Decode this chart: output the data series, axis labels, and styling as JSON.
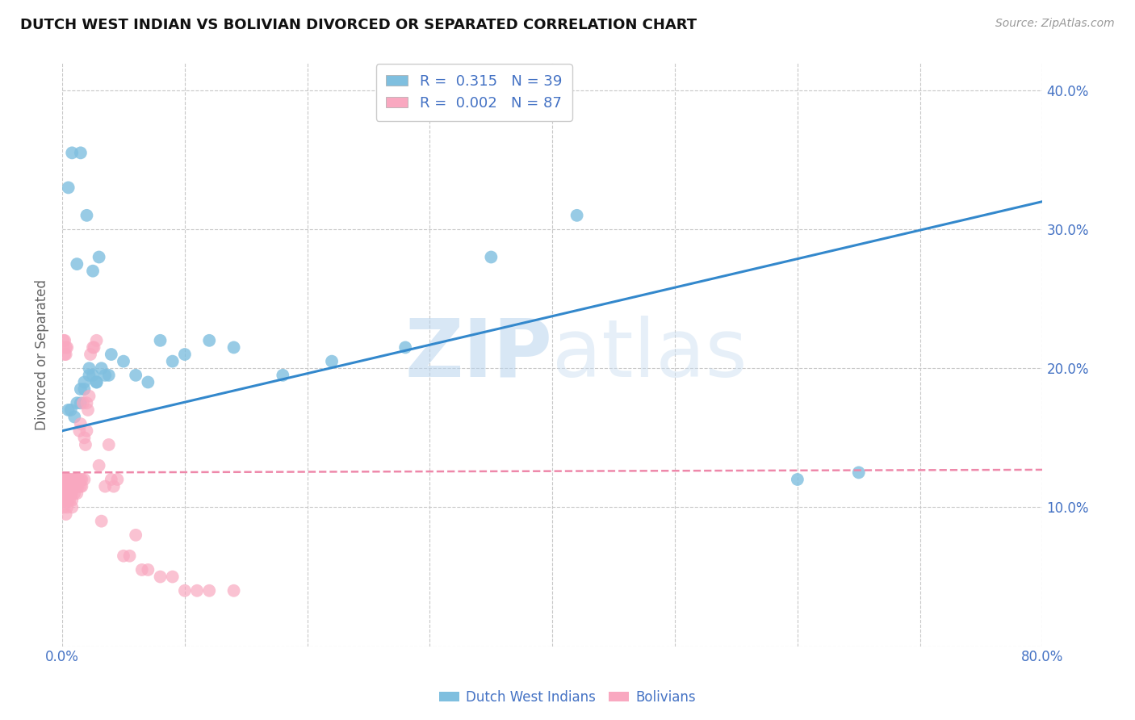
{
  "title": "DUTCH WEST INDIAN VS BOLIVIAN DIVORCED OR SEPARATED CORRELATION CHART",
  "source": "Source: ZipAtlas.com",
  "xlabel": "",
  "ylabel": "Divorced or Separated",
  "xlim": [
    0.0,
    0.8
  ],
  "ylim": [
    0.0,
    0.42
  ],
  "xticks": [
    0.0,
    0.1,
    0.2,
    0.3,
    0.4,
    0.5,
    0.6,
    0.7,
    0.8
  ],
  "yticks": [
    0.0,
    0.1,
    0.2,
    0.3,
    0.4
  ],
  "grid_color": "#c8c8c8",
  "background_color": "#ffffff",
  "blue_color": "#7fbfdf",
  "pink_color": "#f9a8c0",
  "blue_line_color": "#3388cc",
  "pink_line_color": "#ee88aa",
  "legend_R_blue": "0.315",
  "legend_N_blue": "39",
  "legend_R_pink": "0.002",
  "legend_N_pink": "87",
  "watermark_zip": "ZIP",
  "watermark_atlas": "atlas",
  "blue_scatter_x": [
    0.005,
    0.007,
    0.012,
    0.015,
    0.018,
    0.022,
    0.025,
    0.028,
    0.032,
    0.038,
    0.01,
    0.015,
    0.018,
    0.022,
    0.028,
    0.035,
    0.04,
    0.05,
    0.06,
    0.07,
    0.08,
    0.09,
    0.1,
    0.12,
    0.14,
    0.18,
    0.22,
    0.28,
    0.35,
    0.42,
    0.005,
    0.008,
    0.012,
    0.015,
    0.02,
    0.025,
    0.03,
    0.6,
    0.65
  ],
  "blue_scatter_y": [
    0.17,
    0.17,
    0.175,
    0.185,
    0.19,
    0.2,
    0.195,
    0.19,
    0.2,
    0.195,
    0.165,
    0.175,
    0.185,
    0.195,
    0.19,
    0.195,
    0.21,
    0.205,
    0.195,
    0.19,
    0.22,
    0.205,
    0.21,
    0.22,
    0.215,
    0.195,
    0.205,
    0.215,
    0.28,
    0.31,
    0.33,
    0.355,
    0.275,
    0.355,
    0.31,
    0.27,
    0.28,
    0.12,
    0.125
  ],
  "pink_scatter_x": [
    0.001,
    0.001,
    0.001,
    0.001,
    0.001,
    0.002,
    0.002,
    0.002,
    0.002,
    0.002,
    0.003,
    0.003,
    0.003,
    0.003,
    0.003,
    0.004,
    0.004,
    0.004,
    0.004,
    0.005,
    0.005,
    0.005,
    0.005,
    0.006,
    0.006,
    0.006,
    0.006,
    0.007,
    0.007,
    0.007,
    0.008,
    0.008,
    0.008,
    0.009,
    0.009,
    0.01,
    0.01,
    0.01,
    0.011,
    0.011,
    0.012,
    0.012,
    0.013,
    0.013,
    0.014,
    0.015,
    0.015,
    0.015,
    0.016,
    0.016,
    0.017,
    0.018,
    0.018,
    0.019,
    0.02,
    0.02,
    0.021,
    0.022,
    0.023,
    0.025,
    0.026,
    0.028,
    0.03,
    0.032,
    0.035,
    0.038,
    0.04,
    0.042,
    0.045,
    0.05,
    0.055,
    0.06,
    0.065,
    0.07,
    0.08,
    0.09,
    0.1,
    0.11,
    0.12,
    0.14,
    0.001,
    0.001,
    0.002,
    0.002,
    0.003,
    0.003,
    0.004
  ],
  "pink_scatter_y": [
    0.115,
    0.12,
    0.115,
    0.105,
    0.1,
    0.115,
    0.12,
    0.115,
    0.11,
    0.105,
    0.12,
    0.115,
    0.11,
    0.105,
    0.095,
    0.115,
    0.11,
    0.105,
    0.1,
    0.12,
    0.115,
    0.11,
    0.105,
    0.115,
    0.12,
    0.11,
    0.105,
    0.115,
    0.12,
    0.11,
    0.11,
    0.105,
    0.1,
    0.115,
    0.12,
    0.115,
    0.12,
    0.11,
    0.115,
    0.12,
    0.115,
    0.11,
    0.115,
    0.12,
    0.155,
    0.115,
    0.12,
    0.16,
    0.115,
    0.12,
    0.175,
    0.15,
    0.12,
    0.145,
    0.155,
    0.175,
    0.17,
    0.18,
    0.21,
    0.215,
    0.215,
    0.22,
    0.13,
    0.09,
    0.115,
    0.145,
    0.12,
    0.115,
    0.12,
    0.065,
    0.065,
    0.08,
    0.055,
    0.055,
    0.05,
    0.05,
    0.04,
    0.04,
    0.04,
    0.04,
    0.22,
    0.215,
    0.21,
    0.22,
    0.215,
    0.21,
    0.215
  ],
  "blue_trendline_x": [
    0.0,
    0.8
  ],
  "blue_trendline_y": [
    0.155,
    0.32
  ],
  "pink_trendline_x": [
    0.0,
    0.8
  ],
  "pink_trendline_y": [
    0.125,
    0.127
  ]
}
